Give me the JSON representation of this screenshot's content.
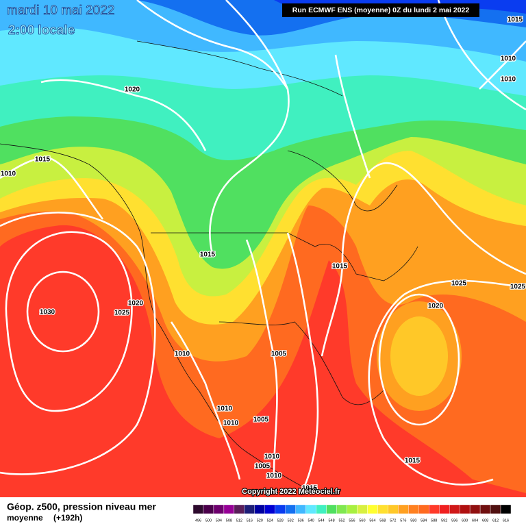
{
  "header": {
    "date": "mardi 10 mai 2022",
    "time": "2:00 locale",
    "run": "Run ECMWF ENS (moyenne) 0Z du lundi 2 mai 2022"
  },
  "isobar_labels": [
    1015,
    1010,
    1010,
    1020,
    1015,
    1010,
    1015,
    1015,
    1025,
    1025,
    1020,
    1025,
    1030,
    1020,
    1010,
    1005,
    1010,
    1005,
    1010,
    1010,
    1005,
    1010,
    1015,
    1015
  ],
  "copyright": "Copyright 2022 Météociel.fr",
  "footer": {
    "title": "Géop. z500, pression niveau mer",
    "subtitle": "moyenne",
    "lead": "(+192h)"
  },
  "colorbar": {
    "labels": [
      496,
      500,
      504,
      508,
      512,
      516,
      520,
      524,
      528,
      532,
      536,
      540,
      544,
      548,
      552,
      556,
      560,
      564,
      568,
      572,
      576,
      580,
      584,
      588,
      592,
      596,
      600,
      604,
      608,
      612,
      616
    ],
    "colors": [
      "#2d0a2d",
      "#4b004b",
      "#6e006e",
      "#960096",
      "#5a1e5a",
      "#1e1e78",
      "#0000a0",
      "#0000d2",
      "#0a3cf0",
      "#1470f0",
      "#40b8ff",
      "#60e8ff",
      "#40f0c0",
      "#50e060",
      "#80e850",
      "#a8f040",
      "#d8f040",
      "#ffff30",
      "#ffe030",
      "#ffc828",
      "#ffa020",
      "#ff8020",
      "#ff6a20",
      "#ff3a2a",
      "#f02020",
      "#d01818",
      "#b01010",
      "#901010",
      "#701010",
      "#501010",
      "#000000"
    ]
  }
}
